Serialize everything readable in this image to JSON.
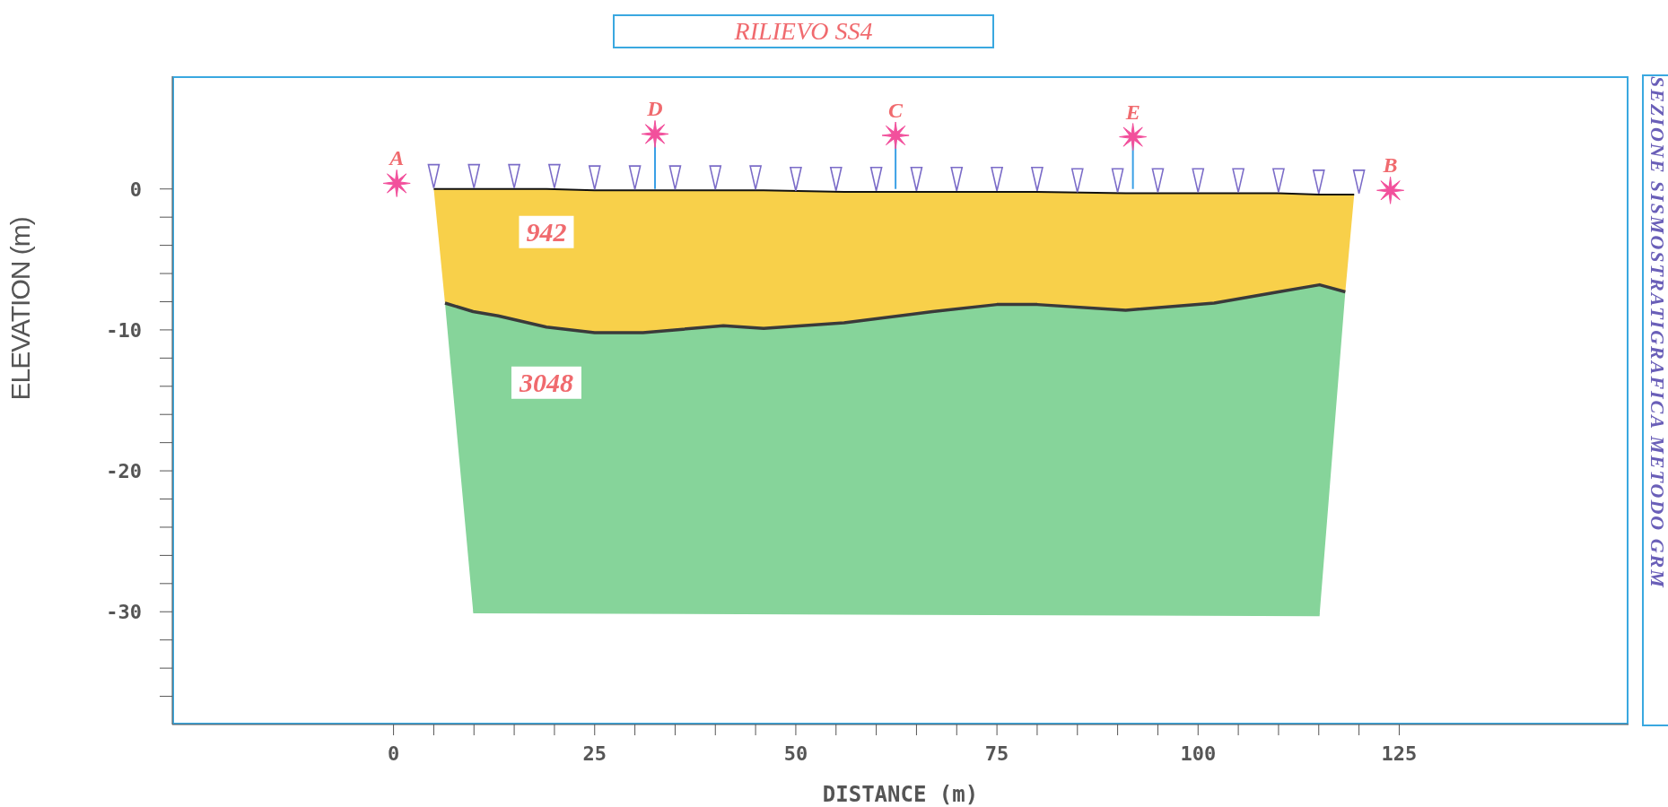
{
  "chart_data": {
    "type": "line",
    "title": "RILIEVO SS4",
    "subtitle": "SEZIONE SISMOSTRATIGRAFICA METODO GRM",
    "xlabel": "DISTANCE (m)",
    "ylabel": "ELEVATION (m)",
    "xlim": [
      -27.5,
      153.5
    ],
    "ylim": [
      -38,
      8
    ],
    "xticks": [
      0,
      {
        "value": 5,
        "label": null
      },
      {
        "value": 10,
        "label": null
      },
      {
        "value": 15,
        "label": null
      },
      {
        "value": 20,
        "label": null
      },
      25,
      {
        "value": 30,
        "label": null
      },
      {
        "value": 35,
        "label": null
      },
      {
        "value": 40,
        "label": null
      },
      {
        "value": 45,
        "label": null
      },
      50,
      {
        "value": 55,
        "label": null
      },
      {
        "value": 60,
        "label": null
      },
      {
        "value": 65,
        "label": null
      },
      {
        "value": 70,
        "label": null
      },
      75,
      {
        "value": 80,
        "label": null
      },
      {
        "value": 85,
        "label": null
      },
      {
        "value": 90,
        "label": null
      },
      {
        "value": 95,
        "label": null
      },
      100,
      {
        "value": 105,
        "label": null
      },
      {
        "value": 110,
        "label": null
      },
      {
        "value": 115,
        "label": null
      },
      {
        "value": 120,
        "label": null
      },
      125
    ],
    "yticks": [
      {
        "value": -36,
        "label": null
      },
      {
        "value": -34,
        "label": null
      },
      {
        "value": -32,
        "label": null
      },
      -30,
      {
        "value": -28,
        "label": null
      },
      {
        "value": -26,
        "label": null
      },
      {
        "value": -24,
        "label": null
      },
      {
        "value": -22,
        "label": null
      },
      -20,
      {
        "value": -18,
        "label": null
      },
      {
        "value": -16,
        "label": null
      },
      {
        "value": -14,
        "label": null
      },
      {
        "value": -12,
        "label": null
      },
      -10,
      {
        "value": -8,
        "label": null
      },
      {
        "value": -6,
        "label": null
      },
      {
        "value": -4,
        "label": null
      },
      {
        "value": -2,
        "label": null
      },
      0
    ],
    "series": [
      {
        "name": "942",
        "color": "#111111",
        "x": [
          5,
          6.4,
          13,
          19,
          25,
          31,
          41,
          46,
          56,
          67,
          75,
          80,
          91,
          102,
          110,
          115,
          118.3,
          119.4
        ],
        "values": [
          0,
          0,
          0,
          0,
          -0.1,
          -0.1,
          -0.1,
          -0.1,
          -0.2,
          -0.2,
          -0.2,
          -0.2,
          -0.3,
          -0.3,
          -0.3,
          -0.4,
          -0.4,
          -0.4
        ]
      },
      {
        "name": "3048",
        "color": "#3a3a3a",
        "x": [
          6.4,
          9.9,
          13,
          19,
          25,
          31,
          41,
          46,
          56,
          67,
          75,
          80,
          91,
          102,
          110,
          115.1,
          118.3
        ],
        "values": [
          -8.1,
          -8.7,
          -9.0,
          -9.8,
          -10.2,
          -10.2,
          -9.7,
          -9.9,
          -9.5,
          -8.7,
          -8.2,
          -8.2,
          -8.6,
          -8.1,
          -7.3,
          -6.8,
          -7.3
        ]
      },
      {
        "color": "#86d49a",
        "x": [
          9.9,
          115.1
        ],
        "values": [
          -30,
          -30.2
        ]
      },
      {
        "type": "scatter",
        "marker": "triangle",
        "color": "#7b6cc8",
        "x": [
          5,
          10,
          15,
          20,
          25,
          30,
          35,
          40,
          45,
          50,
          55,
          60,
          65,
          70,
          75,
          80,
          85,
          90,
          95,
          100,
          105,
          110,
          115,
          120
        ],
        "values": [
          0.9,
          0.9,
          0.9,
          0.9,
          0.8,
          0.8,
          0.8,
          0.8,
          0.8,
          0.7,
          0.7,
          0.7,
          0.7,
          0.7,
          0.7,
          0.7,
          0.6,
          0.6,
          0.6,
          0.6,
          0.6,
          0.6,
          0.5,
          0.5
        ]
      },
      {
        "type": "scatter",
        "marker": "star",
        "color": "#f2509c",
        "x": [
          0.4,
          32.5,
          62.4,
          91.9,
          123.9
        ],
        "values": [
          0.4,
          3.9,
          3.8,
          3.7,
          -0.1
        ],
        "errors": [
          null,
          [
            0,
            3.9
          ],
          [
            0,
            3.8
          ],
          [
            0,
            3.7
          ],
          null
        ]
      }
    ],
    "annotations": [
      {
        "text": "A",
        "x": 0.4,
        "y": 0.4
      },
      {
        "text": "D",
        "x": 32.5,
        "y": 3.9
      },
      {
        "text": "C",
        "x": 62.4,
        "y": 3.8
      },
      {
        "text": "E",
        "x": 91.9,
        "y": 3.7
      },
      {
        "text": "B",
        "x": 123.9,
        "y": -0.1
      }
    ]
  }
}
